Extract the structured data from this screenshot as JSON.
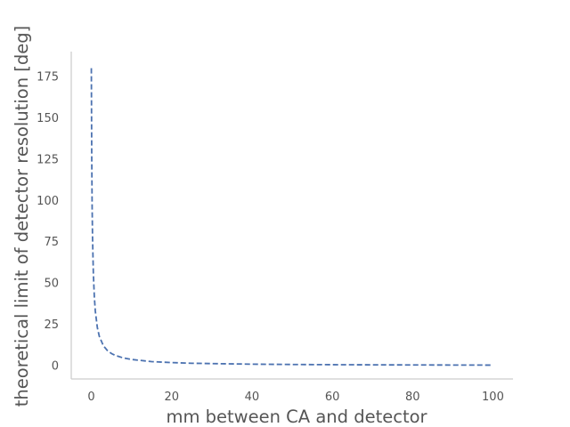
{
  "chart_data": {
    "type": "line",
    "title": "",
    "xlabel": "mm between CA and detector",
    "ylabel": "theoretical limit of detector resolution [deg]",
    "xlim": [
      -5,
      105
    ],
    "ylim": [
      -8,
      190
    ],
    "xticks": [
      0,
      20,
      40,
      60,
      80,
      100
    ],
    "yticks": [
      0,
      25,
      50,
      75,
      100,
      125,
      150,
      175
    ],
    "xtick_labels": [
      "0",
      "20",
      "40",
      "60",
      "80",
      100
    ],
    "ytick_labels": [
      "0",
      "25",
      "50",
      "75",
      "100",
      "125",
      "150",
      "175"
    ],
    "grid": false,
    "legend": "none",
    "line_style": "dashed",
    "color": "#4c72b0",
    "series": [
      {
        "x": [
          0,
          0.1,
          0.2,
          0.3,
          0.5,
          0.75,
          1,
          1.5,
          2,
          3,
          4,
          5,
          6,
          8,
          10,
          15,
          20,
          25,
          30,
          40,
          50,
          60,
          70,
          80,
          90,
          100
        ],
        "y": [
          180,
          126.5,
          96.1,
          77.8,
          56.3,
          41.6,
          32.9,
          23.0,
          17.7,
          12.1,
          9.2,
          7.4,
          6.2,
          4.7,
          3.8,
          2.5,
          1.9,
          1.5,
          1.3,
          0.95,
          0.76,
          0.64,
          0.55,
          0.48,
          0.42,
          0.38
        ]
      }
    ]
  }
}
